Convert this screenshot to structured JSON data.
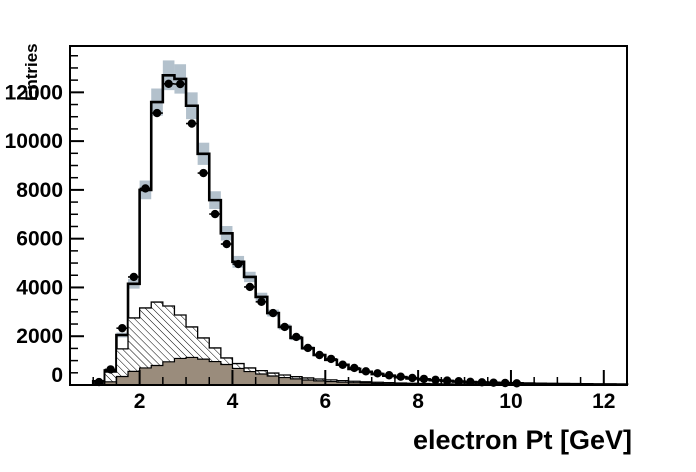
{
  "figure": {
    "title": "electron Pt [GeV]",
    "y_axis_title": "Entries"
  },
  "chart_data": {
    "type": "histogram",
    "title": "electron Pt [GeV]",
    "xlabel": "electron Pt [GeV]",
    "ylabel": "Entries",
    "xlim": [
      0.5,
      12.5
    ],
    "ylim": [
      0,
      13900
    ],
    "x_major_ticks": [
      2,
      4,
      6,
      8,
      10,
      12
    ],
    "x_minor_step": 0.5,
    "y_major_ticks": [
      0,
      2000,
      4000,
      6000,
      8000,
      10000,
      12000
    ],
    "y_minor_step": 500,
    "grid": false,
    "legend": "none",
    "bin_start": 1.0,
    "bin_width": 0.25,
    "band_rel_error": 0.048,
    "colors": {
      "band": "#b3c1cc",
      "brown_fill": "#9a8c7c",
      "line": "#000000",
      "marker": "#000000",
      "hatch_line": "#000000",
      "background": "#ffffff"
    },
    "series": [
      {
        "name": "total-mc-outline",
        "style": "step-outline-black",
        "values": [
          150,
          600,
          2050,
          4150,
          8000,
          11600,
          12700,
          12550,
          11450,
          9480,
          7580,
          6220,
          5050,
          4430,
          3610,
          2950,
          2380,
          1930,
          1510,
          1230,
          1030,
          830,
          660,
          540,
          450,
          380,
          320,
          270,
          230,
          195,
          165,
          140,
          120,
          105,
          90,
          78,
          68,
          58,
          50,
          44,
          38,
          33,
          29,
          25,
          22,
          19
        ]
      },
      {
        "name": "uncertainty-band",
        "style": "gray-blue-boxes",
        "follows": "total-mc-outline"
      },
      {
        "name": "hatched-component",
        "style": "white-fill-diagonal-hatch",
        "values": [
          50,
          530,
          1480,
          2750,
          3160,
          3400,
          3240,
          2870,
          2380,
          1930,
          1520,
          1110,
          880,
          700,
          590,
          490,
          410,
          340,
          290,
          245,
          210,
          180,
          155,
          130,
          112,
          96,
          82,
          70,
          60,
          52,
          45,
          38,
          33,
          28,
          24,
          21,
          18,
          15,
          13,
          11,
          10,
          9,
          8,
          7,
          6,
          5
        ]
      },
      {
        "name": "brown-component",
        "style": "solid-brown-fill",
        "values": [
          15,
          130,
          350,
          560,
          700,
          800,
          950,
          1090,
          1130,
          1060,
          960,
          840,
          680,
          550,
          450,
          370,
          305,
          250,
          205,
          170,
          140,
          115,
          95,
          80,
          66,
          54,
          44,
          36,
          30,
          25,
          21,
          17,
          14,
          12,
          10,
          8,
          7,
          6,
          5,
          4,
          4,
          3,
          3,
          2,
          2,
          2
        ]
      },
      {
        "name": "data-points",
        "style": "black-filled-circles-with-x-error-bars",
        "first_center": 1.125,
        "values": [
          120,
          640,
          2330,
          4430,
          8060,
          11150,
          12350,
          12340,
          10720,
          8690,
          7010,
          5780,
          4960,
          4020,
          3410,
          2950,
          2380,
          1970,
          1520,
          1230,
          1070,
          830,
          700,
          560,
          480,
          400,
          340,
          290,
          250,
          210,
          180,
          155,
          130,
          110,
          95,
          82,
          70
        ]
      }
    ]
  }
}
